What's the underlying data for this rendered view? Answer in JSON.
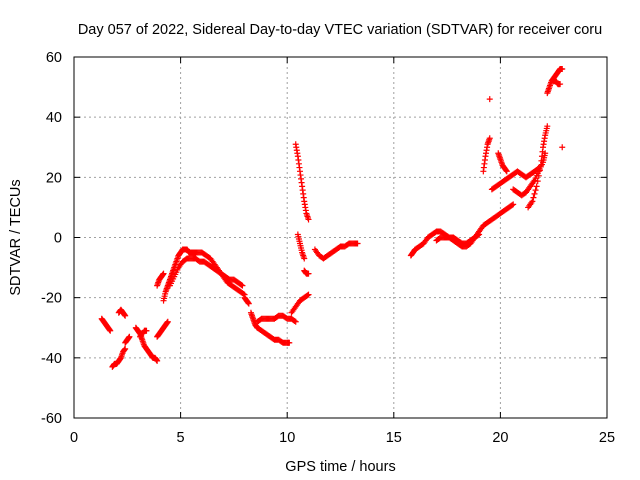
{
  "chart_data": {
    "type": "scatter",
    "title": "Day 057 of 2022, Sidereal Day-to-day VTEC variation (SDTVAR) for receiver coru",
    "xlabel": "GPS time / hours",
    "ylabel": "SDTVAR / TECUs",
    "xlim": [
      0,
      25
    ],
    "ylim": [
      -60,
      60
    ],
    "xticks": [
      0,
      5,
      10,
      15,
      20,
      25
    ],
    "yticks": [
      -60,
      -40,
      -20,
      0,
      20,
      40,
      60
    ],
    "grid": true,
    "marker": "+",
    "color": "#ff0000",
    "series": [
      {
        "segments": [
          {
            "x": [
              1.3,
              1.4,
              1.5,
              1.6,
              1.7
            ],
            "y": [
              -27,
              -28,
              -29,
              -30,
              -31
            ]
          },
          {
            "x": [
              1.8,
              1.9,
              2.0,
              2.1,
              2.2,
              2.3,
              2.4
            ],
            "y": [
              -43,
              -42,
              -42,
              -41,
              -40,
              -38,
              -37
            ]
          },
          {
            "x": [
              2.1,
              2.2,
              2.3,
              2.4
            ],
            "y": [
              -25,
              -24,
              -25,
              -26
            ]
          },
          {
            "x": [
              2.4,
              2.5,
              2.6
            ],
            "y": [
              -35,
              -34,
              -33
            ]
          },
          {
            "x": [
              2.9,
              3.0,
              3.1,
              3.2,
              3.3,
              3.4,
              3.5,
              3.6,
              3.7,
              3.8,
              3.9
            ],
            "y": [
              -30,
              -31,
              -32,
              -34,
              -36,
              -37,
              -38,
              -39,
              -40,
              -40,
              -41
            ]
          },
          {
            "x": [
              3.1,
              3.3,
              3.4
            ],
            "y": [
              -33,
              -31,
              -31
            ]
          },
          {
            "x": [
              3.9,
              4.0,
              4.1,
              4.2,
              4.3,
              4.4
            ],
            "y": [
              -33,
              -32,
              -31,
              -30,
              -29,
              -28
            ]
          },
          {
            "x": [
              3.9,
              4.0,
              4.1,
              4.2
            ],
            "y": [
              -16,
              -14,
              -13,
              -12
            ]
          },
          {
            "x": [
              4.2,
              4.3,
              4.4,
              4.5,
              4.6,
              4.7,
              4.8,
              4.9,
              5.0,
              5.1,
              5.2,
              5.3,
              5.4,
              5.5,
              5.6,
              5.8,
              6.0,
              6.2,
              6.4,
              6.6,
              6.8,
              7.0,
              7.2,
              7.4,
              7.6,
              7.8,
              8.0
            ],
            "y": [
              -21,
              -18,
              -16,
              -14,
              -12,
              -10,
              -8,
              -6,
              -5,
              -4,
              -4,
              -4,
              -5,
              -5,
              -5,
              -5,
              -5,
              -6,
              -7,
              -9,
              -11,
              -13,
              -15,
              -16,
              -17,
              -18,
              -19
            ]
          },
          {
            "x": [
              4.5,
              4.7,
              4.9,
              5.1,
              5.3,
              5.5,
              5.7,
              5.9,
              6.1,
              6.3,
              6.5,
              6.7,
              6.9,
              7.1,
              7.3,
              7.5,
              7.7,
              7.9
            ],
            "y": [
              -16,
              -13,
              -10,
              -8,
              -7,
              -7,
              -7,
              -8,
              -8,
              -9,
              -10,
              -11,
              -12,
              -13,
              -14,
              -14,
              -15,
              -16
            ]
          },
          {
            "x": [
              8.0,
              8.1,
              8.2
            ],
            "y": [
              -20,
              -21,
              -22
            ]
          },
          {
            "x": [
              8.3,
              8.4,
              8.5,
              8.6
            ],
            "y": [
              -25,
              -27,
              -29,
              -30
            ]
          },
          {
            "x": [
              8.6,
              8.8,
              9.0,
              9.2,
              9.4,
              9.6,
              9.8,
              10.0,
              10.1
            ],
            "y": [
              -30,
              -31,
              -32,
              -33,
              -34,
              -34,
              -35,
              -35,
              -35
            ]
          },
          {
            "x": [
              8.6,
              8.8,
              9.0,
              9.2,
              9.4,
              9.6,
              9.8,
              10.0,
              10.2,
              10.4
            ],
            "y": [
              -28,
              -27,
              -27,
              -27,
              -27,
              -26,
              -26,
              -27,
              -27,
              -28
            ]
          },
          {
            "x": [
              10.2,
              10.4,
              10.6,
              10.8,
              11.0
            ],
            "y": [
              -25,
              -23,
              -21,
              -20,
              -19
            ]
          },
          {
            "x": [
              10.4,
              10.5,
              10.6,
              10.7,
              10.8,
              10.9,
              11.0
            ],
            "y": [
              31,
              27,
              22,
              17,
              12,
              8,
              6
            ]
          },
          {
            "x": [
              10.5,
              10.6,
              10.7,
              10.8
            ],
            "y": [
              1,
              -2,
              -5,
              -7
            ]
          },
          {
            "x": [
              10.8,
              10.9,
              11.0
            ],
            "y": [
              -11,
              -12,
              -12
            ]
          },
          {
            "x": [
              11.3,
              11.5,
              11.7,
              11.9,
              12.1,
              12.3,
              12.5,
              12.7,
              12.9,
              13.1,
              13.3
            ],
            "y": [
              -4,
              -6,
              -7,
              -6,
              -5,
              -4,
              -3,
              -3,
              -2,
              -2,
              -2
            ]
          },
          {
            "x": [
              15.8,
              15.9,
              16.0,
              16.2,
              16.4,
              16.6,
              16.8,
              17.0,
              17.2,
              17.4,
              17.6,
              17.8,
              18.0,
              18.2,
              18.4,
              18.6,
              18.8,
              19.0,
              19.2,
              19.4,
              19.6,
              19.8,
              20.0,
              20.2,
              20.4,
              20.6
            ],
            "y": [
              -6,
              -5,
              -4,
              -3,
              -2,
              0,
              1,
              2,
              2,
              1,
              0,
              -1,
              -2,
              -3,
              -3,
              -2,
              0,
              2,
              4,
              5,
              6,
              7,
              8,
              9,
              10,
              11
            ]
          },
          {
            "x": [
              17.0,
              17.2,
              17.4,
              17.6,
              17.8,
              18.0,
              18.2,
              18.4,
              18.6,
              18.8,
              19.0
            ],
            "y": [
              -1,
              0,
              0,
              0,
              0,
              -1,
              -2,
              -2,
              -1,
              0,
              1
            ]
          },
          {
            "x": [
              19.2,
              19.3,
              19.4,
              19.5
            ],
            "y": [
              22,
              27,
              31,
              33
            ]
          },
          {
            "x": [
              19.5
            ],
            "y": [
              46
            ]
          },
          {
            "x": [
              19.6,
              19.8,
              20.0,
              20.2,
              20.4,
              20.6,
              20.8,
              21.0,
              21.2,
              21.4,
              21.6,
              21.8
            ],
            "y": [
              16,
              17,
              18,
              19,
              20,
              21,
              22,
              21,
              20,
              21,
              22,
              23
            ]
          },
          {
            "x": [
              19.9,
              20.0,
              20.1,
              20.2,
              20.3
            ],
            "y": [
              28,
              26,
              24,
              23,
              22
            ]
          },
          {
            "x": [
              20.6,
              20.8,
              21.0,
              21.2,
              21.4,
              21.6,
              21.8,
              22.0,
              22.1
            ],
            "y": [
              16,
              15,
              14,
              15,
              17,
              19,
              22,
              25,
              28
            ]
          },
          {
            "x": [
              21.3,
              21.5,
              21.7,
              21.9,
              22.0,
              22.1,
              22.2
            ],
            "y": [
              10,
              12,
              17,
              24,
              30,
              34,
              37
            ]
          },
          {
            "x": [
              22.2,
              22.3,
              22.4,
              22.5,
              22.6,
              22.7,
              22.8,
              22.9
            ],
            "y": [
              48,
              50,
              52,
              53,
              54,
              55,
              56,
              56
            ]
          },
          {
            "x": [
              22.5,
              22.6,
              22.7,
              22.8
            ],
            "y": [
              52,
              52,
              51,
              51
            ]
          },
          {
            "x": [
              22.9
            ],
            "y": [
              30
            ]
          }
        ]
      }
    ]
  }
}
